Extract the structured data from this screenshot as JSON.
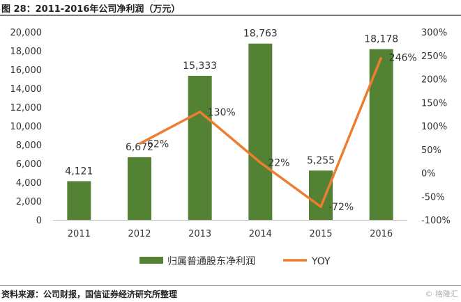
{
  "figure": {
    "title": "图 28：2011-2016年公司净利润（万元）",
    "source": "资料来源：公司财报，国信证券经济研究所整理",
    "watermark": "格隆汇",
    "watermark_icon": "gelonghui-logo-icon"
  },
  "colors": {
    "bar": "#538234",
    "line": "#ed7d31",
    "text": "#333333",
    "axis": "#bfbfbf"
  },
  "chart_data": {
    "type": "bar",
    "title": "2011-2016年公司净利润（万元）",
    "categories": [
      "2011",
      "2012",
      "2013",
      "2014",
      "2015",
      "2016"
    ],
    "series": [
      {
        "name": "归属普通股东净利润",
        "type": "bar",
        "axis": "left",
        "values": [
          4121,
          6672,
          15333,
          18763,
          5255,
          18178
        ],
        "labels": [
          "4,121",
          "6,672",
          "15,333",
          "18,763",
          "5,255",
          "18,178"
        ]
      },
      {
        "name": "YOY",
        "type": "line",
        "axis": "right",
        "values": [
          null,
          62,
          130,
          22,
          -72,
          246
        ],
        "labels": [
          "",
          "62%",
          "130%",
          "22%",
          "-72%",
          "246%"
        ]
      }
    ],
    "y_left": {
      "range": [
        0,
        20000
      ],
      "ticks": [
        0,
        2000,
        4000,
        6000,
        8000,
        10000,
        12000,
        14000,
        16000,
        18000,
        20000
      ],
      "tick_labels": [
        "0",
        "2,000",
        "4,000",
        "6,000",
        "8,000",
        "10,000",
        "12,000",
        "14,000",
        "16,000",
        "18,000",
        "20,000"
      ]
    },
    "y_right": {
      "range": [
        -100,
        300
      ],
      "ticks": [
        -100,
        -50,
        0,
        50,
        100,
        150,
        200,
        250,
        300
      ],
      "tick_labels": [
        "-100%",
        "-50%",
        "0%",
        "50%",
        "100%",
        "150%",
        "200%",
        "250%",
        "300%"
      ]
    },
    "xlabel": "",
    "ylabel": "",
    "grid": false,
    "legend": "bottom"
  }
}
